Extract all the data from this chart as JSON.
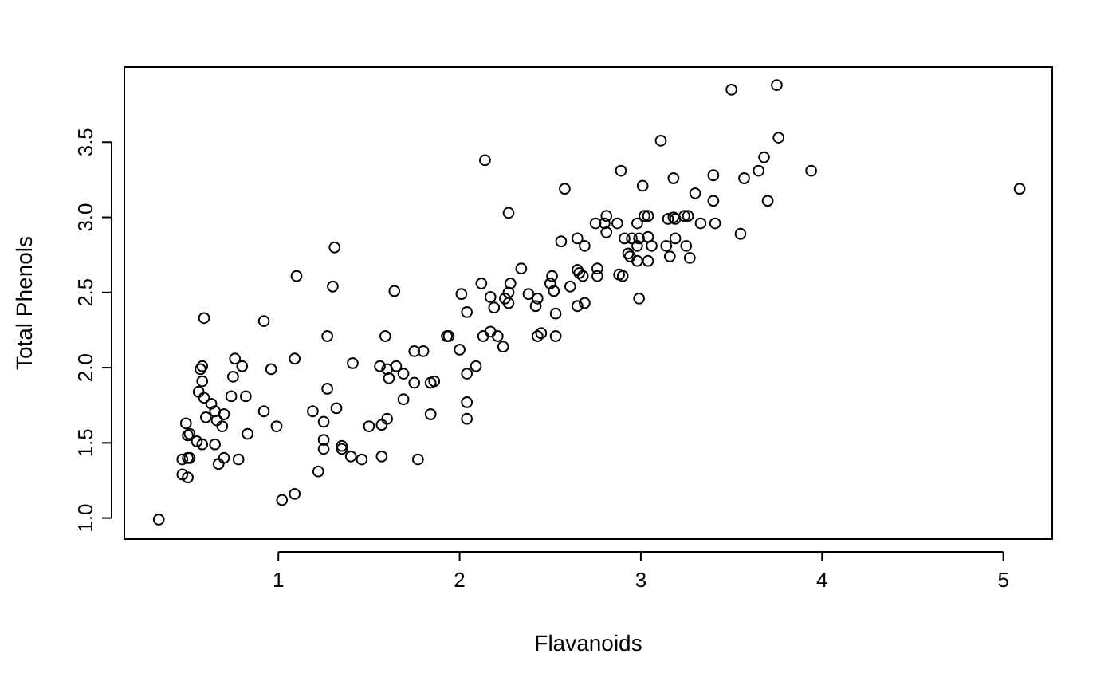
{
  "chart_data": {
    "type": "scatter",
    "xlabel": "Flavanoids",
    "ylabel": "Total Phenols",
    "marker": "circle",
    "grid": false,
    "xlim": [
      0.15,
      5.27
    ],
    "ylim": [
      0.86,
      4.0
    ],
    "xticks": [
      1,
      2,
      3,
      4,
      5
    ],
    "yticks": [
      {
        "value": 1,
        "label": "1.0"
      },
      {
        "value": 1.5,
        "label": "1.5"
      },
      {
        "value": 2,
        "label": "2.0"
      },
      {
        "value": 2.5,
        "label": "2.5"
      },
      {
        "value": 3,
        "label": "3.0"
      },
      {
        "value": 3.5,
        "label": "3.5"
      }
    ],
    "series": [
      {
        "color": "#000000",
        "x": [
          1.31,
          1.1,
          1.3,
          0.59,
          0.92,
          1.27,
          0.76,
          0.8,
          0.58,
          0.57,
          1.09,
          0.96,
          1.41,
          0.75,
          0.58,
          0.56,
          0.74,
          0.82,
          1.27,
          0.59,
          0.63,
          0.65,
          0.7,
          0.6,
          0.66,
          0.69,
          0.92,
          1.19,
          1.32,
          1.25,
          0.99,
          0.83,
          1.5,
          0.49,
          0.51,
          0.5,
          0.55,
          0.58,
          0.65,
          1.25,
          1.25,
          1.35,
          1.35,
          1.4,
          1.46,
          0.51,
          0.5,
          0.47,
          0.7,
          0.67,
          0.78,
          1.22,
          0.47,
          0.5,
          1.09,
          1.02,
          0.34,
          1.56,
          1.57,
          1.57,
          1.64,
          2.34,
          2.12,
          2.01,
          2.04,
          2.17,
          2.19,
          2.25,
          2.27,
          2.28,
          2.27,
          2.38,
          2.43,
          2.42,
          2.51,
          2.5,
          2.52,
          2.53,
          2.61,
          2.65,
          2.66,
          2.68,
          2.76,
          2.76,
          2.88,
          2.65,
          2.69,
          1.59,
          1.93,
          1.94,
          2.0,
          2.13,
          2.17,
          2.21,
          2.24,
          2.43,
          2.45,
          2.53,
          1.75,
          1.8,
          1.6,
          1.65,
          1.61,
          1.69,
          1.75,
          1.84,
          1.86,
          2.04,
          2.09,
          1.69,
          1.84,
          2.04,
          2.04,
          1.6,
          1.77,
          3.5,
          3.75,
          3.11,
          3.76,
          3.68,
          3.65,
          3.94,
          3.57,
          2.89,
          3.01,
          3.18,
          3.4,
          3.3,
          3.4,
          3.7,
          3.55,
          2.81,
          2.87,
          2.98,
          3.02,
          3.04,
          3.15,
          3.18,
          3.19,
          3.24,
          3.26,
          3.33,
          3.41,
          2.81,
          2.91,
          2.95,
          2.99,
          3.04,
          3.19,
          2.98,
          3.06,
          3.14,
          3.25,
          2.93,
          2.94,
          2.98,
          3.04,
          3.16,
          3.27,
          2.9,
          2.99,
          2.14,
          2.58,
          2.27,
          2.75,
          2.8,
          2.56,
          2.65,
          2.69,
          5.09
        ],
        "values": [
          2.8,
          2.61,
          2.54,
          2.33,
          2.31,
          2.21,
          2.06,
          2.01,
          2.01,
          1.99,
          2.06,
          1.99,
          2.03,
          1.94,
          1.91,
          1.84,
          1.81,
          1.81,
          1.86,
          1.8,
          1.76,
          1.71,
          1.69,
          1.67,
          1.65,
          1.61,
          1.71,
          1.71,
          1.73,
          1.64,
          1.61,
          1.56,
          1.61,
          1.63,
          1.56,
          1.55,
          1.51,
          1.49,
          1.49,
          1.52,
          1.46,
          1.48,
          1.46,
          1.41,
          1.39,
          1.4,
          1.4,
          1.39,
          1.4,
          1.36,
          1.39,
          1.31,
          1.29,
          1.27,
          1.16,
          1.12,
          0.99,
          2.01,
          1.62,
          1.41,
          2.51,
          2.66,
          2.56,
          2.49,
          2.37,
          2.47,
          2.4,
          2.46,
          2.43,
          2.56,
          2.5,
          2.49,
          2.46,
          2.41,
          2.61,
          2.56,
          2.51,
          2.36,
          2.54,
          2.65,
          2.63,
          2.61,
          2.66,
          2.61,
          2.62,
          2.41,
          2.43,
          2.21,
          2.21,
          2.21,
          2.12,
          2.21,
          2.24,
          2.21,
          2.14,
          2.21,
          2.23,
          2.21,
          2.11,
          2.11,
          1.99,
          2.01,
          1.93,
          1.96,
          1.9,
          1.9,
          1.91,
          1.96,
          2.01,
          1.79,
          1.69,
          1.77,
          1.66,
          1.66,
          1.39,
          3.85,
          3.88,
          3.51,
          3.53,
          3.4,
          3.31,
          3.31,
          3.26,
          3.31,
          3.21,
          3.26,
          3.28,
          3.16,
          3.11,
          3.11,
          2.89,
          3.01,
          2.96,
          2.96,
          3.01,
          3.01,
          2.99,
          3.0,
          2.99,
          3.01,
          3.01,
          2.96,
          2.96,
          2.9,
          2.86,
          2.86,
          2.86,
          2.87,
          2.86,
          2.81,
          2.81,
          2.81,
          2.81,
          2.76,
          2.74,
          2.71,
          2.71,
          2.74,
          2.73,
          2.61,
          2.46,
          3.38,
          3.19,
          3.03,
          2.96,
          2.96,
          2.84,
          2.86,
          2.81,
          3.19
        ]
      }
    ]
  }
}
